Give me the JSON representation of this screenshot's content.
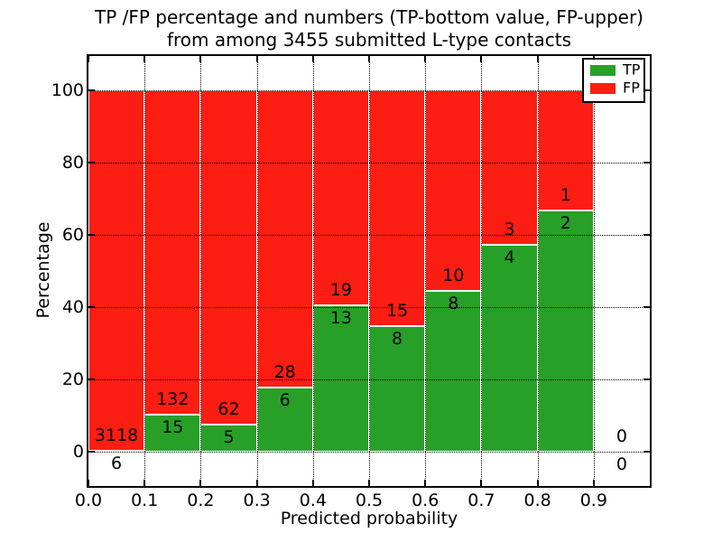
{
  "chart_data": {
    "type": "bar",
    "stacked": true,
    "title": "TP /FP percentage and numbers (TP-bottom value, FP-upper)",
    "subtitle": "from among 3455 submitted L-type contacts",
    "xlabel": "Predicted probability",
    "ylabel": "Percentage",
    "xlim": [
      0.0,
      1.0
    ],
    "ylim": [
      -9.5,
      109.5
    ],
    "grid": "dotted",
    "legend_position": "upper right",
    "x_ticks": [
      "0.0",
      "0.1",
      "0.2",
      "0.3",
      "0.4",
      "0.5",
      "0.6",
      "0.7",
      "0.8",
      "0.9"
    ],
    "y_ticks": [
      0,
      20,
      40,
      60,
      80,
      100
    ],
    "series": [
      {
        "name": "TP",
        "color": "#28a028",
        "position": "bottom"
      },
      {
        "name": "FP",
        "color": "#fc1d13",
        "position": "top"
      }
    ],
    "bins": [
      {
        "x_start": 0.0,
        "x_end": 0.1,
        "tp": 6,
        "fp": 3118,
        "tp_pct": 0.19
      },
      {
        "x_start": 0.1,
        "x_end": 0.2,
        "tp": 15,
        "fp": 132,
        "tp_pct": 10.2
      },
      {
        "x_start": 0.2,
        "x_end": 0.3,
        "tp": 5,
        "fp": 62,
        "tp_pct": 7.46
      },
      {
        "x_start": 0.3,
        "x_end": 0.4,
        "tp": 6,
        "fp": 28,
        "tp_pct": 17.65
      },
      {
        "x_start": 0.4,
        "x_end": 0.5,
        "tp": 13,
        "fp": 19,
        "tp_pct": 40.63
      },
      {
        "x_start": 0.5,
        "x_end": 0.6,
        "tp": 8,
        "fp": 15,
        "tp_pct": 34.78
      },
      {
        "x_start": 0.6,
        "x_end": 0.7,
        "tp": 8,
        "fp": 10,
        "tp_pct": 44.44
      },
      {
        "x_start": 0.7,
        "x_end": 0.8,
        "tp": 4,
        "fp": 3,
        "tp_pct": 57.14
      },
      {
        "x_start": 0.8,
        "x_end": 0.9,
        "tp": 2,
        "fp": 1,
        "tp_pct": 66.67
      },
      {
        "x_start": 0.9,
        "x_end": 1.0,
        "tp": 0,
        "fp": 0,
        "tp_pct": 0
      }
    ],
    "total_contacts": 3455
  }
}
